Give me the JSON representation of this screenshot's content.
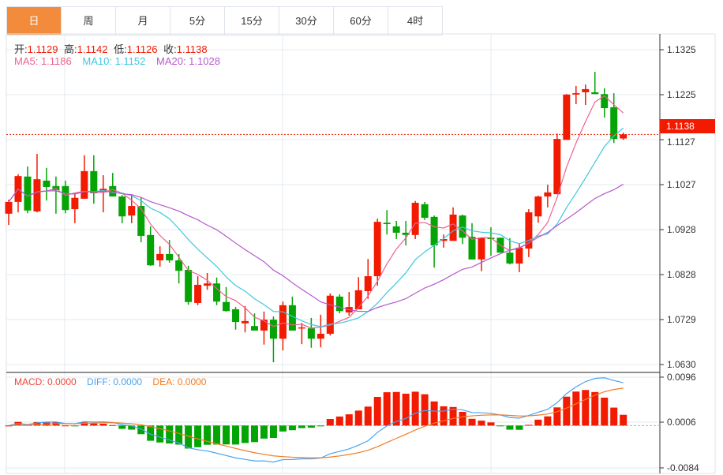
{
  "tabs": [
    {
      "label": "日",
      "active": true
    },
    {
      "label": "周"
    },
    {
      "label": "月"
    },
    {
      "label": "5分"
    },
    {
      "label": "15分"
    },
    {
      "label": "30分"
    },
    {
      "label": "60分"
    },
    {
      "label": "4时"
    }
  ],
  "ohlc": {
    "open_label": "开:",
    "open": "1.1129",
    "high_label": "高:",
    "high": "1.1142",
    "low_label": "低:",
    "low": "1.1126",
    "close_label": "收:",
    "close": "1.1138"
  },
  "ma": {
    "ma5": "MA5: 1.1186",
    "ma10": "MA10: 1.1152",
    "ma20": "MA20: 1.1028"
  },
  "macd": {
    "macd": "MACD: 0.0000",
    "diff": "DIFF: 0.0000",
    "dea": "DEA: 0.0000"
  },
  "price_axis": [
    "1.1325",
    "1.1225",
    "1.1127",
    "1.1027",
    "1.0928",
    "1.0828",
    "1.0729",
    "1.0630"
  ],
  "macd_axis": [
    "0.0096",
    "0.0006",
    "-0.0084"
  ],
  "current_price": "1.1138",
  "colors": {
    "up": "#f21a00",
    "down": "#04a404",
    "ma5": "#ee6291",
    "ma10": "#3fc8dc",
    "ma20": "#b659cc",
    "diff": "#4aa3ee",
    "dea": "#f47b20",
    "accent": "#f28b3c"
  },
  "chart_data": {
    "type": "candlestick",
    "price_range": [
      1.063,
      1.1325
    ],
    "macd_range": [
      -0.0084,
      0.0096
    ],
    "candles": [
      [
        1.0963,
        1.0994,
        1.0938,
        1.0989
      ],
      [
        1.0989,
        1.105,
        1.0966,
        1.1046
      ],
      [
        1.1045,
        1.1067,
        1.0964,
        1.097
      ],
      [
        1.0968,
        1.1095,
        1.0966,
        1.1039
      ],
      [
        1.1036,
        1.1064,
        1.0992,
        1.1022
      ],
      [
        1.1024,
        1.1045,
        1.0963,
        1.1015
      ],
      [
        1.1024,
        1.1036,
        1.0964,
        1.0971
      ],
      [
        1.0973,
        1.1008,
        1.0942,
        1.0998
      ],
      [
        1.0996,
        1.1092,
        1.0996,
        1.1057
      ],
      [
        1.1057,
        1.1092,
        1.0985,
        1.1008
      ],
      [
        1.101,
        1.1048,
        1.0966,
        1.1018
      ],
      [
        1.1024,
        1.1053,
        1.1001,
        1.1001
      ],
      [
        1.1001,
        1.1004,
        1.0942,
        1.0957
      ],
      [
        1.0959,
        1.1006,
        1.0942,
        1.098
      ],
      [
        1.098,
        1.0998,
        1.09,
        1.0914
      ],
      [
        1.0916,
        1.0935,
        1.0848,
        1.0849
      ],
      [
        1.086,
        1.0891,
        1.0846,
        1.0874
      ],
      [
        1.0874,
        1.0905,
        1.0855,
        1.086
      ],
      [
        1.086,
        1.0874,
        1.0809,
        1.0837
      ],
      [
        1.0839,
        1.0848,
        1.0762,
        1.0768
      ],
      [
        1.0766,
        1.0825,
        1.0761,
        1.0806
      ],
      [
        1.0804,
        1.0832,
        1.0795,
        1.0809
      ],
      [
        1.0809,
        1.0822,
        1.0761,
        1.0769
      ],
      [
        1.0768,
        1.0801,
        1.0747,
        1.0748
      ],
      [
        1.0752,
        1.0757,
        1.0707,
        1.0724
      ],
      [
        1.0721,
        1.0759,
        1.0701,
        1.0726
      ],
      [
        1.0715,
        1.0743,
        1.0705,
        1.0705
      ],
      [
        1.0705,
        1.0747,
        1.0674,
        1.0729
      ],
      [
        1.0729,
        1.0736,
        1.0635,
        1.0687
      ],
      [
        1.0687,
        1.0769,
        1.0661,
        1.0761
      ],
      [
        1.0761,
        1.078,
        1.0705,
        1.0705
      ],
      [
        1.071,
        1.0722,
        1.0675,
        1.0712
      ],
      [
        1.071,
        1.0733,
        1.0667,
        1.0687
      ],
      [
        1.0687,
        1.074,
        1.0668,
        1.0698
      ],
      [
        1.0698,
        1.0787,
        1.0694,
        1.0782
      ],
      [
        1.078,
        1.0785,
        1.0743,
        1.0748
      ],
      [
        1.0745,
        1.079,
        1.0738,
        1.0757
      ],
      [
        1.0752,
        1.0823,
        1.0752,
        1.0794
      ],
      [
        1.0792,
        1.0863,
        1.0775,
        1.0825
      ],
      [
        1.0825,
        1.0952,
        1.0804,
        1.0945
      ],
      [
        1.0943,
        1.0971,
        1.0917,
        1.094
      ],
      [
        1.0935,
        1.0947,
        1.0907,
        1.0921
      ],
      [
        1.0921,
        1.0947,
        1.0893,
        1.0916
      ],
      [
        1.0916,
        1.0991,
        1.0907,
        1.0987
      ],
      [
        1.0984,
        1.0989,
        1.0949,
        1.0954
      ],
      [
        1.0956,
        1.0959,
        1.0844,
        1.0893
      ],
      [
        1.0903,
        1.0917,
        1.0888,
        1.0907
      ],
      [
        1.0903,
        1.0977,
        1.0903,
        1.0961
      ],
      [
        1.0959,
        1.0961,
        1.0896,
        1.091
      ],
      [
        1.0912,
        1.0942,
        1.0862,
        1.0862
      ],
      [
        1.0862,
        1.091,
        1.0836,
        1.091
      ],
      [
        1.091,
        1.0933,
        1.087,
        1.0907
      ],
      [
        1.091,
        1.091,
        1.0877,
        1.0877
      ],
      [
        1.0877,
        1.0909,
        1.0851,
        1.0853
      ],
      [
        1.0853,
        1.0898,
        1.0834,
        1.0888
      ],
      [
        1.0886,
        1.0973,
        1.0867,
        1.0966
      ],
      [
        1.0957,
        1.1003,
        1.0943,
        1.1001
      ],
      [
        1.1001,
        1.1027,
        1.0977,
        1.101
      ],
      [
        1.1006,
        1.114,
        1.1006,
        1.1128
      ],
      [
        1.1126,
        1.1227,
        1.1126,
        1.1226
      ],
      [
        1.1226,
        1.1245,
        1.1205,
        1.1229
      ],
      [
        1.1231,
        1.1248,
        1.1203,
        1.1238
      ],
      [
        1.1231,
        1.1276,
        1.1227,
        1.1227
      ],
      [
        1.1227,
        1.124,
        1.1175,
        1.1196
      ],
      [
        1.1198,
        1.1229,
        1.1119,
        1.1128
      ],
      [
        1.1129,
        1.1142,
        1.1126,
        1.1138
      ]
    ]
  }
}
